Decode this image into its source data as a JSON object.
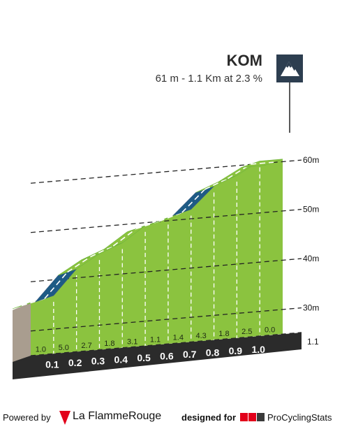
{
  "header": {
    "title": "KOM",
    "subtitle": "61 m - 1.1 Km at 2.3 %",
    "badge_icon": "mountain-icon"
  },
  "chart_data": {
    "type": "area",
    "title": "KOM",
    "subtitle": "61 m - 1.1 Km at 2.3 %",
    "x_unit": "km",
    "y_unit": "m",
    "yticks": [
      "30m",
      "40m",
      "50m",
      "60m"
    ],
    "ytick_values": [
      30,
      40,
      50,
      60
    ],
    "x_end_label": "1.1",
    "km_labels": [
      "0.1",
      "0.2",
      "0.3",
      "0.4",
      "0.5",
      "0.6",
      "0.7",
      "0.8",
      "0.9",
      "1.0"
    ],
    "km_values": [
      0.1,
      0.2,
      0.3,
      0.4,
      0.5,
      0.6,
      0.7,
      0.8,
      0.9,
      1.0
    ],
    "gradient_labels": [
      "1.0",
      "5.0",
      "2.7",
      "1.8",
      "3.1",
      "1.1",
      "1.4",
      "4.3",
      "1.8",
      "2.5",
      "0.0"
    ],
    "gradient_values": [
      1.0,
      5.0,
      2.7,
      1.8,
      3.1,
      1.1,
      1.4,
      4.3,
      1.8,
      2.5,
      0.0
    ],
    "x": [
      0,
      0.1,
      0.2,
      0.3,
      0.4,
      0.5,
      0.6,
      0.7,
      0.8,
      0.9,
      1.0,
      1.1
    ],
    "elevation": [
      35.8,
      36.8,
      41.8,
      44.5,
      46.3,
      49.4,
      50.5,
      51.9,
      56.2,
      58.0,
      60.5,
      60.5
    ],
    "steep_segments": [
      1,
      7
    ],
    "colors": {
      "climb": "#8bc33f",
      "climb_top": "#6db33a",
      "steep": "#1e5b85",
      "steep_top": "#375a7f",
      "base": "#2b2b2b",
      "start_wall": "#a99d8f",
      "kom_badge": "#2d3e50"
    }
  },
  "footer": {
    "powered_by": "Powered by",
    "lfr_brand": "La FlammeRouge",
    "designed_for": "designed for",
    "pcs_brand": "ProCyclingStats"
  }
}
